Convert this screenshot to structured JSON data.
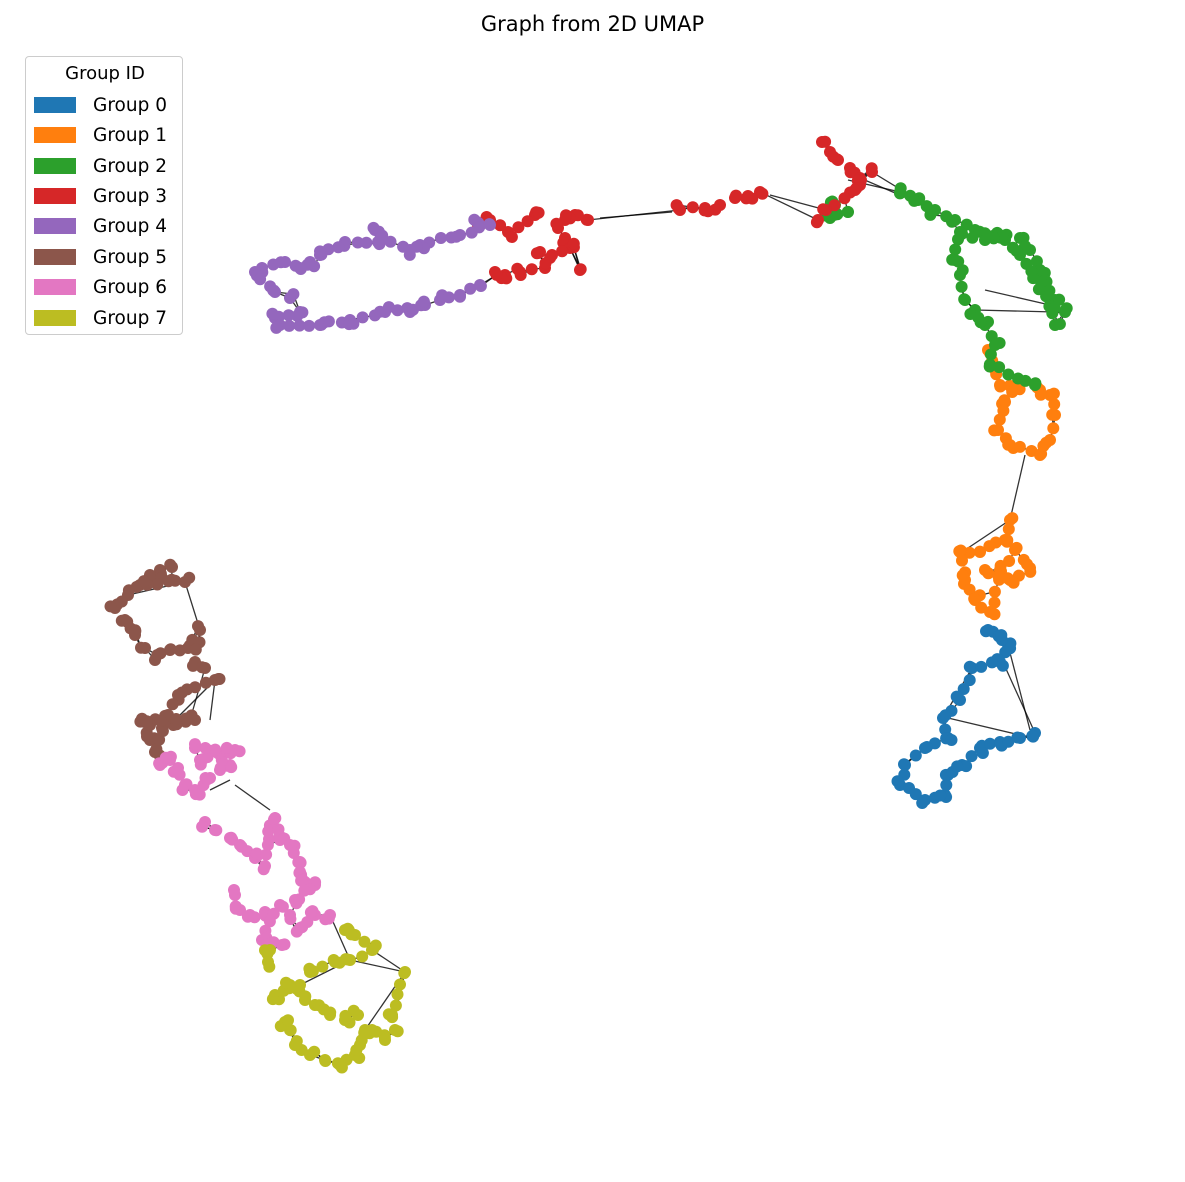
{
  "title": "Graph from 2D UMAP",
  "legend": {
    "title": "Group ID",
    "items": [
      {
        "label": "Group 0",
        "color": "#1f77b4"
      },
      {
        "label": "Group 1",
        "color": "#ff7f0e"
      },
      {
        "label": "Group 2",
        "color": "#2ca02c"
      },
      {
        "label": "Group 3",
        "color": "#d62728"
      },
      {
        "label": "Group 4",
        "color": "#9467bd"
      },
      {
        "label": "Group 5",
        "color": "#8c564b"
      },
      {
        "label": "Group 6",
        "color": "#e377c2"
      },
      {
        "label": "Group 7",
        "color": "#bcbd22"
      }
    ]
  },
  "edge_color": "#000000"
}
